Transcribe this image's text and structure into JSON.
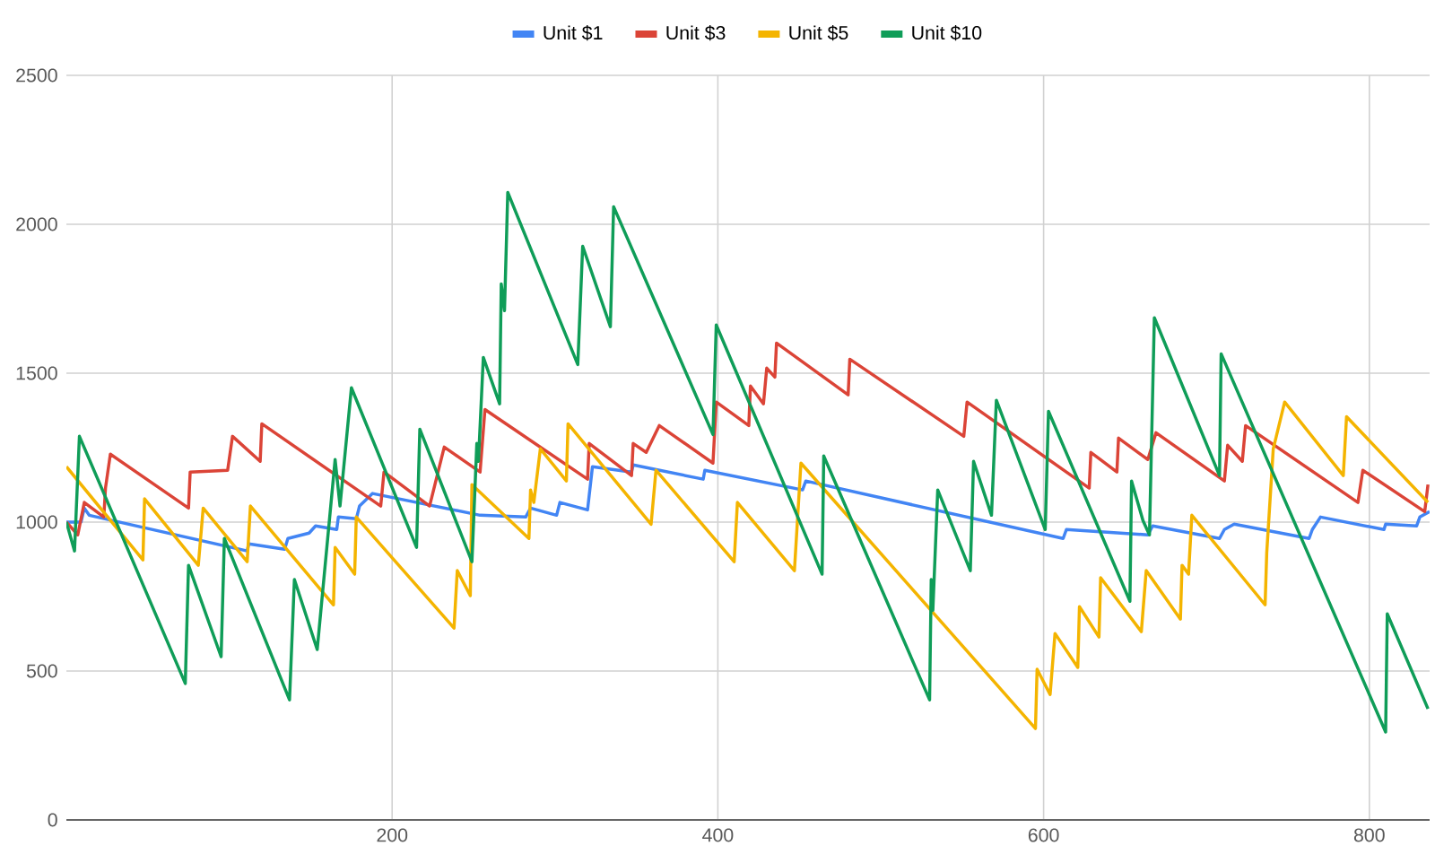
{
  "chart_data": {
    "type": "line",
    "xlim": [
      0,
      837
    ],
    "ylim": [
      0,
      2500
    ],
    "xticks": [
      200,
      400,
      600,
      800
    ],
    "yticks": [
      0,
      500,
      1000,
      1500,
      2000,
      2500
    ],
    "grid": true,
    "legend": "top",
    "series": [
      {
        "name": "Unit $1",
        "color": "#4285f4",
        "x": [
          0,
          9,
          11,
          14,
          111,
          112,
          134,
          136,
          149,
          153,
          166,
          167,
          178,
          180,
          188,
          254,
          282,
          285,
          301,
          303,
          320,
          323,
          347,
          348,
          391,
          392,
          452,
          454,
          612,
          614,
          664,
          667,
          708,
          711,
          717,
          763,
          765,
          770,
          809,
          810,
          829,
          831,
          837
        ],
        "values": [
          1000,
          1000,
          1047,
          1023,
          903,
          927,
          909,
          945,
          963,
          987,
          975,
          1017,
          1011,
          1054,
          1096,
          1023,
          1017,
          1047,
          1023,
          1066,
          1041,
          1186,
          1168,
          1192,
          1144,
          1174,
          1108,
          1138,
          945,
          975,
          957,
          987,
          945,
          975,
          993,
          945,
          975,
          1017,
          975,
          993,
          987,
          1017,
          1035
        ]
      },
      {
        "name": "Unit $3",
        "color": "#db4437",
        "x": [
          0,
          7,
          11,
          23,
          24,
          27,
          75,
          76,
          99,
          102,
          119,
          120,
          193,
          195,
          223,
          232,
          254,
          257,
          320,
          321,
          347,
          348,
          356,
          364,
          397,
          399,
          419,
          420,
          428,
          430,
          435,
          436,
          480,
          481,
          551,
          553,
          628,
          629,
          645,
          646,
          664,
          669,
          711,
          713,
          722,
          724,
          793,
          796,
          834,
          836
        ],
        "values": [
          1000,
          957,
          1066,
          1017,
          1114,
          1228,
          1047,
          1168,
          1174,
          1288,
          1204,
          1330,
          1054,
          1168,
          1054,
          1252,
          1168,
          1378,
          1144,
          1264,
          1156,
          1264,
          1234,
          1324,
          1198,
          1403,
          1324,
          1457,
          1397,
          1517,
          1487,
          1601,
          1427,
          1547,
          1288,
          1403,
          1114,
          1234,
          1168,
          1282,
          1210,
          1300,
          1138,
          1258,
          1204,
          1324,
          1066,
          1174,
          1035,
          1126
        ]
      },
      {
        "name": "Unit $5",
        "color": "#f4b400",
        "x": [
          0,
          47,
          48,
          81,
          84,
          111,
          113,
          164,
          165,
          177,
          178,
          238,
          240,
          248,
          249,
          284,
          285,
          287,
          291,
          307,
          308,
          359,
          362,
          410,
          412,
          447,
          451,
          595,
          596,
          604,
          607,
          621,
          622,
          634,
          635,
          660,
          663,
          684,
          685,
          689,
          691,
          736,
          737,
          741,
          748,
          784,
          786,
          836
        ],
        "values": [
          1186,
          873,
          1078,
          855,
          1047,
          867,
          1054,
          722,
          915,
          825,
          1017,
          644,
          837,
          753,
          1126,
          945,
          1108,
          1066,
          1246,
          1138,
          1330,
          993,
          1174,
          867,
          1066,
          837,
          1198,
          307,
          506,
          421,
          626,
          512,
          716,
          614,
          813,
          632,
          837,
          674,
          855,
          825,
          1023,
          722,
          897,
          1246,
          1403,
          1156,
          1354,
          1066
        ]
      },
      {
        "name": "Unit $10",
        "color": "#0f9d58",
        "x": [
          0,
          5,
          8,
          73,
          75,
          95,
          97,
          137,
          140,
          154,
          165,
          168,
          175,
          215,
          217,
          249,
          252,
          253,
          256,
          266,
          267,
          269,
          271,
          314,
          317,
          334,
          336,
          397,
          399,
          464,
          465,
          530,
          531,
          532,
          535,
          555,
          557,
          568,
          571,
          601,
          603,
          653,
          654,
          661,
          665,
          668,
          708,
          709,
          810,
          811,
          836
        ],
        "values": [
          1000,
          903,
          1288,
          458,
          855,
          548,
          945,
          403,
          807,
          572,
          1210,
          1054,
          1451,
          915,
          1312,
          867,
          1264,
          1204,
          1553,
          1397,
          1800,
          1710,
          2107,
          1529,
          1926,
          1656,
          2059,
          1294,
          1662,
          825,
          1222,
          403,
          807,
          704,
          1108,
          837,
          1204,
          1023,
          1409,
          975,
          1372,
          734,
          1138,
          1005,
          957,
          1686,
          1156,
          1565,
          295,
          692,
          373
        ]
      }
    ]
  }
}
